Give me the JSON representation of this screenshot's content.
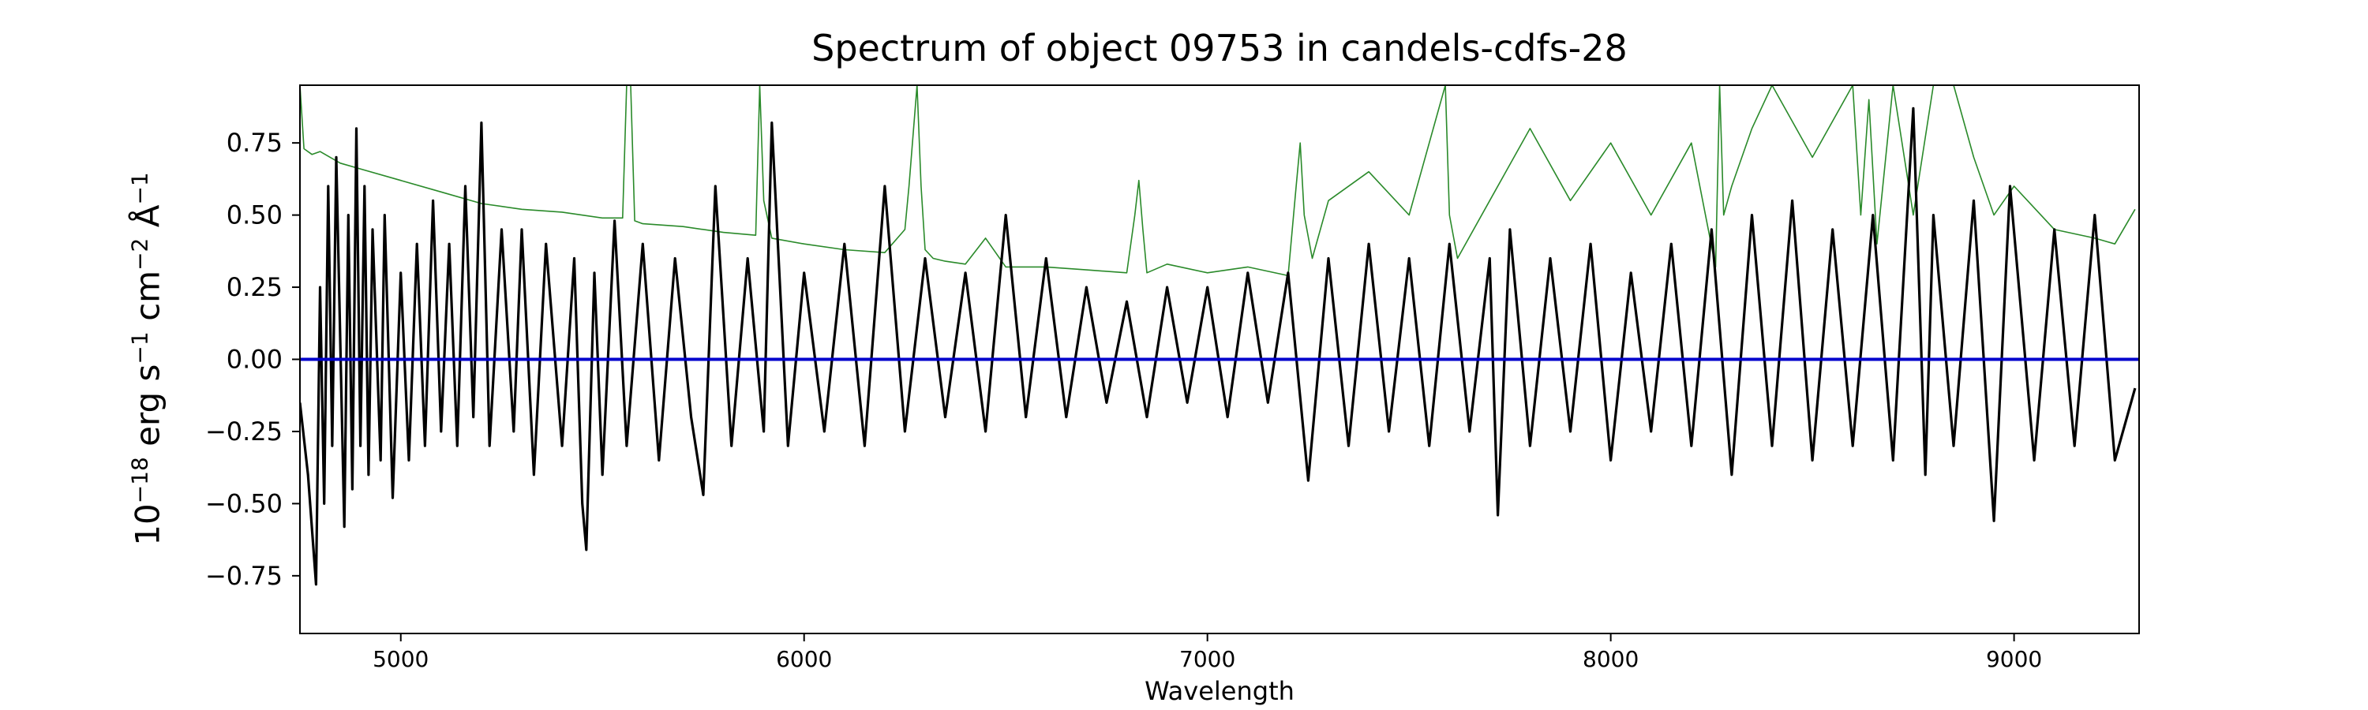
{
  "chart_data": {
    "type": "line",
    "title": "Spectrum of object 09753 in candels-cdfs-28",
    "xlabel": "Wavelength",
    "ylabel": {
      "base": "10",
      "exp_scale": "−18",
      "unit1": " erg s",
      "exp_s": "−1",
      "unit2": " cm",
      "exp_cm": "−2",
      "unit3": " Å",
      "exp_a": "−1"
    },
    "xlim": [
      4750,
      9310
    ],
    "ylim": [
      -0.95,
      0.95
    ],
    "x_ticks": [
      5000,
      6000,
      7000,
      8000,
      9000
    ],
    "x_tick_labels": [
      "5000",
      "6000",
      "7000",
      "8000",
      "9000"
    ],
    "y_ticks": [
      -0.75,
      -0.5,
      -0.25,
      0.0,
      0.25,
      0.5,
      0.75
    ],
    "y_tick_labels": [
      "−0.75",
      "−0.50",
      "−0.25",
      "0.00",
      "0.25",
      "0.50",
      "0.75"
    ],
    "grid": false,
    "series": [
      {
        "color": "#000000",
        "x": [
          4750,
          4770,
          4790,
          4800,
          4810,
          4820,
          4830,
          4840,
          4860,
          4870,
          4880,
          4890,
          4900,
          4910,
          4920,
          4930,
          4950,
          4960,
          4980,
          5000,
          5020,
          5040,
          5060,
          5080,
          5100,
          5120,
          5140,
          5160,
          5180,
          5200,
          5220,
          5250,
          5280,
          5300,
          5330,
          5360,
          5400,
          5430,
          5450,
          5460,
          5480,
          5500,
          5530,
          5560,
          5600,
          5640,
          5680,
          5720,
          5750,
          5780,
          5820,
          5860,
          5900,
          5920,
          5960,
          6000,
          6050,
          6100,
          6150,
          6200,
          6250,
          6300,
          6350,
          6400,
          6450,
          6500,
          6550,
          6600,
          6650,
          6700,
          6750,
          6800,
          6850,
          6900,
          6950,
          7000,
          7050,
          7100,
          7150,
          7200,
          7250,
          7300,
          7350,
          7400,
          7450,
          7500,
          7550,
          7600,
          7650,
          7700,
          7720,
          7750,
          7800,
          7850,
          7900,
          7950,
          8000,
          8050,
          8100,
          8150,
          8200,
          8250,
          8300,
          8350,
          8400,
          8450,
          8500,
          8550,
          8600,
          8650,
          8700,
          8750,
          8780,
          8800,
          8850,
          8900,
          8950,
          8990,
          9050,
          9100,
          9150,
          9200,
          9250,
          9300
        ],
        "y": [
          -0.15,
          -0.4,
          -0.78,
          0.25,
          -0.5,
          0.6,
          -0.3,
          0.7,
          -0.58,
          0.5,
          -0.45,
          0.8,
          -0.3,
          0.6,
          -0.4,
          0.45,
          -0.35,
          0.5,
          -0.48,
          0.3,
          -0.35,
          0.4,
          -0.3,
          0.55,
          -0.25,
          0.4,
          -0.3,
          0.6,
          -0.2,
          0.82,
          -0.3,
          0.45,
          -0.25,
          0.45,
          -0.4,
          0.4,
          -0.3,
          0.35,
          -0.5,
          -0.66,
          0.3,
          -0.4,
          0.48,
          -0.3,
          0.4,
          -0.35,
          0.35,
          -0.2,
          -0.47,
          0.6,
          -0.3,
          0.35,
          -0.25,
          0.82,
          -0.3,
          0.3,
          -0.25,
          0.4,
          -0.3,
          0.6,
          -0.25,
          0.35,
          -0.2,
          0.3,
          -0.25,
          0.5,
          -0.2,
          0.35,
          -0.2,
          0.25,
          -0.15,
          0.2,
          -0.2,
          0.25,
          -0.15,
          0.25,
          -0.2,
          0.3,
          -0.15,
          0.3,
          -0.42,
          0.35,
          -0.3,
          0.4,
          -0.25,
          0.35,
          -0.3,
          0.4,
          -0.25,
          0.35,
          -0.54,
          0.45,
          -0.3,
          0.35,
          -0.25,
          0.4,
          -0.35,
          0.3,
          -0.25,
          0.4,
          -0.3,
          0.45,
          -0.4,
          0.5,
          -0.3,
          0.55,
          -0.35,
          0.45,
          -0.3,
          0.5,
          -0.35,
          0.87,
          -0.4,
          0.5,
          -0.3,
          0.55,
          -0.56,
          0.6,
          -0.35,
          0.45,
          -0.3,
          0.5,
          -0.35,
          -0.1
        ]
      },
      {
        "color": "#2a8a2a",
        "x": [
          4750,
          4760,
          4780,
          4800,
          4850,
          4900,
          5000,
          5100,
          5200,
          5300,
          5400,
          5500,
          5550,
          5560,
          5570,
          5580,
          5600,
          5700,
          5800,
          5880,
          5890,
          5900,
          5920,
          6000,
          6100,
          6200,
          6250,
          6260,
          6280,
          6290,
          6300,
          6320,
          6350,
          6400,
          6450,
          6500,
          6600,
          6700,
          6800,
          6820,
          6830,
          6840,
          6850,
          6900,
          7000,
          7100,
          7200,
          7220,
          7230,
          7240,
          7260,
          7300,
          7400,
          7500,
          7580,
          7590,
          7600,
          7620,
          7700,
          7800,
          7900,
          8000,
          8100,
          8200,
          8260,
          8270,
          8280,
          8300,
          8350,
          8400,
          8500,
          8600,
          8620,
          8640,
          8660,
          8700,
          8750,
          8800,
          8850,
          8900,
          8950,
          9000,
          9100,
          9200,
          9250,
          9300
        ],
        "y": [
          0.95,
          0.73,
          0.71,
          0.72,
          0.68,
          0.66,
          0.62,
          0.58,
          0.54,
          0.52,
          0.51,
          0.49,
          0.49,
          0.95,
          0.95,
          0.48,
          0.47,
          0.46,
          0.44,
          0.43,
          0.95,
          0.55,
          0.42,
          0.4,
          0.38,
          0.37,
          0.45,
          0.6,
          0.95,
          0.6,
          0.38,
          0.35,
          0.34,
          0.33,
          0.42,
          0.32,
          0.32,
          0.31,
          0.3,
          0.5,
          0.62,
          0.45,
          0.3,
          0.33,
          0.3,
          0.32,
          0.29,
          0.6,
          0.75,
          0.5,
          0.35,
          0.55,
          0.65,
          0.5,
          0.9,
          0.95,
          0.5,
          0.35,
          0.55,
          0.8,
          0.55,
          0.75,
          0.5,
          0.75,
          0.32,
          0.95,
          0.5,
          0.6,
          0.8,
          0.95,
          0.7,
          0.95,
          0.5,
          0.9,
          0.4,
          0.95,
          0.5,
          0.95,
          0.95,
          0.7,
          0.5,
          0.6,
          0.45,
          0.42,
          0.4,
          0.52
        ]
      },
      {
        "color": "#0000cc",
        "x": [
          4750,
          9310
        ],
        "y": [
          0.0,
          0.0
        ]
      }
    ]
  }
}
